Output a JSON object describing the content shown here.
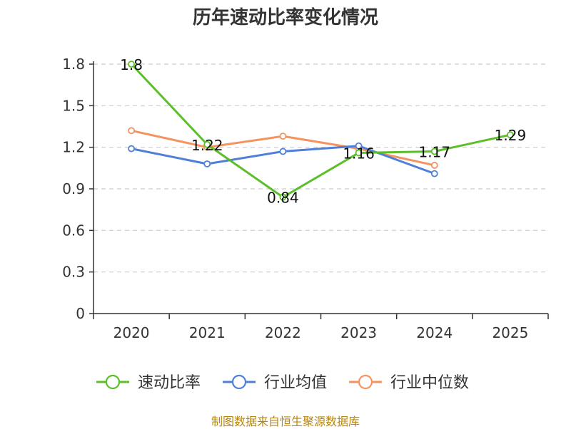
{
  "chart_data": {
    "type": "line",
    "title": "历年速动比率变化情况",
    "categories": [
      "2020",
      "2021",
      "2022",
      "2023",
      "2024",
      "2025"
    ],
    "ylim": [
      0,
      1.8
    ],
    "yticks": [
      "0",
      "0.3",
      "0.6",
      "0.9",
      "1.2",
      "1.5",
      "1.8"
    ],
    "grid": true,
    "legend_position": "bottom",
    "series": [
      {
        "name": "速动比率",
        "color": "#5cbf2a",
        "values": [
          1.8,
          1.22,
          0.84,
          1.16,
          1.17,
          1.29
        ],
        "labels": [
          "1.8",
          "1.22",
          "0.84",
          "1.16",
          "1.17",
          "1.29"
        ]
      },
      {
        "name": "行业均值",
        "color": "#4f7fd6",
        "values": [
          1.19,
          1.08,
          1.17,
          1.21,
          1.01,
          null
        ]
      },
      {
        "name": "行业中位数",
        "color": "#f4935f",
        "values": [
          1.32,
          1.2,
          1.28,
          1.19,
          1.07,
          null
        ]
      }
    ]
  },
  "source_note": "制图数据来自恒生聚源数据库"
}
